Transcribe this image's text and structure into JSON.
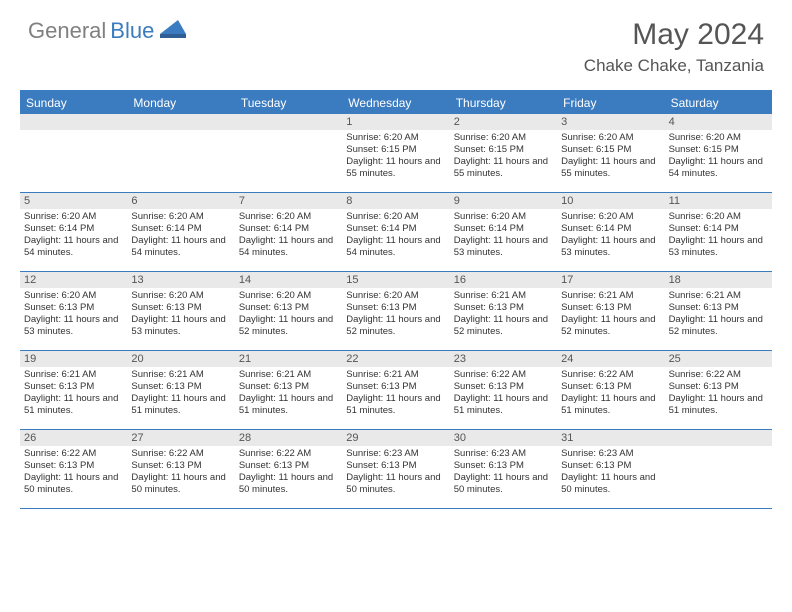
{
  "logo": {
    "text1": "General",
    "text2": "Blue"
  },
  "title": "May 2024",
  "location": "Chake Chake, Tanzania",
  "colors": {
    "header_bg": "#3b7bbf",
    "header_text": "#ffffff",
    "daynum_bg": "#e9e9e9",
    "border": "#3b7bbf",
    "logo_gray": "#808080",
    "logo_blue": "#3b7bbf",
    "title_color": "#555555",
    "body_text": "#333333",
    "page_bg": "#ffffff"
  },
  "day_names": [
    "Sunday",
    "Monday",
    "Tuesday",
    "Wednesday",
    "Thursday",
    "Friday",
    "Saturday"
  ],
  "weeks": [
    [
      {
        "day": "",
        "sunrise": "",
        "sunset": "",
        "daylight": ""
      },
      {
        "day": "",
        "sunrise": "",
        "sunset": "",
        "daylight": ""
      },
      {
        "day": "",
        "sunrise": "",
        "sunset": "",
        "daylight": ""
      },
      {
        "day": "1",
        "sunrise": "Sunrise: 6:20 AM",
        "sunset": "Sunset: 6:15 PM",
        "daylight": "Daylight: 11 hours and 55 minutes."
      },
      {
        "day": "2",
        "sunrise": "Sunrise: 6:20 AM",
        "sunset": "Sunset: 6:15 PM",
        "daylight": "Daylight: 11 hours and 55 minutes."
      },
      {
        "day": "3",
        "sunrise": "Sunrise: 6:20 AM",
        "sunset": "Sunset: 6:15 PM",
        "daylight": "Daylight: 11 hours and 55 minutes."
      },
      {
        "day": "4",
        "sunrise": "Sunrise: 6:20 AM",
        "sunset": "Sunset: 6:15 PM",
        "daylight": "Daylight: 11 hours and 54 minutes."
      }
    ],
    [
      {
        "day": "5",
        "sunrise": "Sunrise: 6:20 AM",
        "sunset": "Sunset: 6:14 PM",
        "daylight": "Daylight: 11 hours and 54 minutes."
      },
      {
        "day": "6",
        "sunrise": "Sunrise: 6:20 AM",
        "sunset": "Sunset: 6:14 PM",
        "daylight": "Daylight: 11 hours and 54 minutes."
      },
      {
        "day": "7",
        "sunrise": "Sunrise: 6:20 AM",
        "sunset": "Sunset: 6:14 PM",
        "daylight": "Daylight: 11 hours and 54 minutes."
      },
      {
        "day": "8",
        "sunrise": "Sunrise: 6:20 AM",
        "sunset": "Sunset: 6:14 PM",
        "daylight": "Daylight: 11 hours and 54 minutes."
      },
      {
        "day": "9",
        "sunrise": "Sunrise: 6:20 AM",
        "sunset": "Sunset: 6:14 PM",
        "daylight": "Daylight: 11 hours and 53 minutes."
      },
      {
        "day": "10",
        "sunrise": "Sunrise: 6:20 AM",
        "sunset": "Sunset: 6:14 PM",
        "daylight": "Daylight: 11 hours and 53 minutes."
      },
      {
        "day": "11",
        "sunrise": "Sunrise: 6:20 AM",
        "sunset": "Sunset: 6:14 PM",
        "daylight": "Daylight: 11 hours and 53 minutes."
      }
    ],
    [
      {
        "day": "12",
        "sunrise": "Sunrise: 6:20 AM",
        "sunset": "Sunset: 6:13 PM",
        "daylight": "Daylight: 11 hours and 53 minutes."
      },
      {
        "day": "13",
        "sunrise": "Sunrise: 6:20 AM",
        "sunset": "Sunset: 6:13 PM",
        "daylight": "Daylight: 11 hours and 53 minutes."
      },
      {
        "day": "14",
        "sunrise": "Sunrise: 6:20 AM",
        "sunset": "Sunset: 6:13 PM",
        "daylight": "Daylight: 11 hours and 52 minutes."
      },
      {
        "day": "15",
        "sunrise": "Sunrise: 6:20 AM",
        "sunset": "Sunset: 6:13 PM",
        "daylight": "Daylight: 11 hours and 52 minutes."
      },
      {
        "day": "16",
        "sunrise": "Sunrise: 6:21 AM",
        "sunset": "Sunset: 6:13 PM",
        "daylight": "Daylight: 11 hours and 52 minutes."
      },
      {
        "day": "17",
        "sunrise": "Sunrise: 6:21 AM",
        "sunset": "Sunset: 6:13 PM",
        "daylight": "Daylight: 11 hours and 52 minutes."
      },
      {
        "day": "18",
        "sunrise": "Sunrise: 6:21 AM",
        "sunset": "Sunset: 6:13 PM",
        "daylight": "Daylight: 11 hours and 52 minutes."
      }
    ],
    [
      {
        "day": "19",
        "sunrise": "Sunrise: 6:21 AM",
        "sunset": "Sunset: 6:13 PM",
        "daylight": "Daylight: 11 hours and 51 minutes."
      },
      {
        "day": "20",
        "sunrise": "Sunrise: 6:21 AM",
        "sunset": "Sunset: 6:13 PM",
        "daylight": "Daylight: 11 hours and 51 minutes."
      },
      {
        "day": "21",
        "sunrise": "Sunrise: 6:21 AM",
        "sunset": "Sunset: 6:13 PM",
        "daylight": "Daylight: 11 hours and 51 minutes."
      },
      {
        "day": "22",
        "sunrise": "Sunrise: 6:21 AM",
        "sunset": "Sunset: 6:13 PM",
        "daylight": "Daylight: 11 hours and 51 minutes."
      },
      {
        "day": "23",
        "sunrise": "Sunrise: 6:22 AM",
        "sunset": "Sunset: 6:13 PM",
        "daylight": "Daylight: 11 hours and 51 minutes."
      },
      {
        "day": "24",
        "sunrise": "Sunrise: 6:22 AM",
        "sunset": "Sunset: 6:13 PM",
        "daylight": "Daylight: 11 hours and 51 minutes."
      },
      {
        "day": "25",
        "sunrise": "Sunrise: 6:22 AM",
        "sunset": "Sunset: 6:13 PM",
        "daylight": "Daylight: 11 hours and 51 minutes."
      }
    ],
    [
      {
        "day": "26",
        "sunrise": "Sunrise: 6:22 AM",
        "sunset": "Sunset: 6:13 PM",
        "daylight": "Daylight: 11 hours and 50 minutes."
      },
      {
        "day": "27",
        "sunrise": "Sunrise: 6:22 AM",
        "sunset": "Sunset: 6:13 PM",
        "daylight": "Daylight: 11 hours and 50 minutes."
      },
      {
        "day": "28",
        "sunrise": "Sunrise: 6:22 AM",
        "sunset": "Sunset: 6:13 PM",
        "daylight": "Daylight: 11 hours and 50 minutes."
      },
      {
        "day": "29",
        "sunrise": "Sunrise: 6:23 AM",
        "sunset": "Sunset: 6:13 PM",
        "daylight": "Daylight: 11 hours and 50 minutes."
      },
      {
        "day": "30",
        "sunrise": "Sunrise: 6:23 AM",
        "sunset": "Sunset: 6:13 PM",
        "daylight": "Daylight: 11 hours and 50 minutes."
      },
      {
        "day": "31",
        "sunrise": "Sunrise: 6:23 AM",
        "sunset": "Sunset: 6:13 PM",
        "daylight": "Daylight: 11 hours and 50 minutes."
      },
      {
        "day": "",
        "sunrise": "",
        "sunset": "",
        "daylight": ""
      }
    ]
  ]
}
